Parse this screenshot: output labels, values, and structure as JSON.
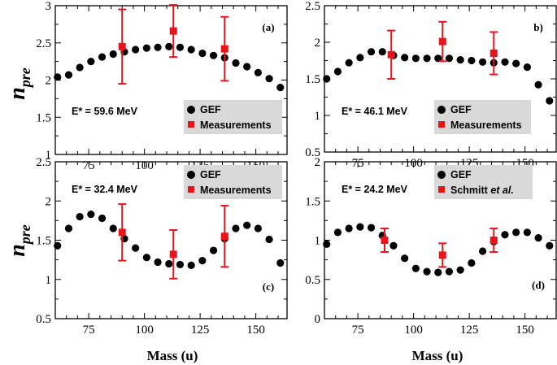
{
  "y_axis_label": "n",
  "y_axis_subscript": "pre",
  "x_axis_label": "Mass (u)",
  "chart_data": [
    {
      "type": "scatter",
      "panel_label": "(a)",
      "energy_label": "E* = 59.6 MeV",
      "legend": [
        "GEF",
        "Measurements"
      ],
      "xlim": [
        60,
        164
      ],
      "ylim": [
        1,
        3
      ],
      "xticks": [
        75,
        100,
        125,
        150
      ],
      "yticks": [
        1,
        1.5,
        2,
        2.5,
        3
      ],
      "ytick_labels": [
        "1",
        "1.5",
        "2",
        "2.5",
        "3"
      ],
      "series": [
        {
          "name": "GEF",
          "x": [
            61,
            66,
            71,
            76,
            81,
            86,
            91,
            96,
            101,
            106,
            111,
            116,
            121,
            126,
            131,
            136,
            141,
            146,
            151,
            156,
            161
          ],
          "y": [
            2.04,
            2.07,
            2.17,
            2.25,
            2.31,
            2.35,
            2.38,
            2.41,
            2.43,
            2.44,
            2.45,
            2.44,
            2.41,
            2.36,
            2.33,
            2.3,
            2.23,
            2.18,
            2.1,
            2.02,
            1.9
          ]
        },
        {
          "name": "Measurements",
          "x": [
            90,
            113,
            136
          ],
          "y": [
            2.45,
            2.66,
            2.42
          ],
          "err": [
            0.5,
            0.35,
            0.43
          ]
        }
      ]
    },
    {
      "type": "scatter",
      "panel_label": "b)",
      "energy_label": "E* = 46.1 MeV",
      "legend": [
        "GEF",
        "Measurements"
      ],
      "xlim": [
        60,
        164
      ],
      "ylim": [
        0.5,
        2.5
      ],
      "xticks": [
        75,
        100,
        125,
        150
      ],
      "yticks": [
        0.5,
        1,
        1.5,
        2,
        2.5
      ],
      "ytick_labels": [
        "0.5",
        "1",
        "1.5",
        "2",
        "2.5"
      ],
      "series": [
        {
          "name": "GEF",
          "x": [
            61,
            66,
            71,
            76,
            81,
            86,
            91,
            96,
            101,
            106,
            111,
            116,
            121,
            126,
            131,
            136,
            141,
            146,
            151,
            156,
            161
          ],
          "y": [
            1.5,
            1.6,
            1.72,
            1.79,
            1.87,
            1.87,
            1.82,
            1.79,
            1.78,
            1.78,
            1.78,
            1.78,
            1.76,
            1.75,
            1.73,
            1.72,
            1.73,
            1.71,
            1.66,
            1.42,
            1.2
          ]
        },
        {
          "name": "Measurements",
          "x": [
            90,
            113,
            136
          ],
          "y": [
            1.83,
            2.01,
            1.85
          ],
          "err": [
            0.33,
            0.27,
            0.29
          ]
        }
      ]
    },
    {
      "type": "scatter",
      "panel_label": "(c)",
      "energy_label": "E* = 32.4 MeV",
      "legend": [
        "GEF",
        "Measurements"
      ],
      "xlim": [
        60,
        164
      ],
      "ylim": [
        0.5,
        2.5
      ],
      "xticks": [
        75,
        100,
        125,
        150
      ],
      "yticks": [
        0.5,
        1,
        1.5,
        2,
        2.5
      ],
      "ytick_labels": [
        "0.5",
        "1",
        "1.5",
        "2",
        "2.5"
      ],
      "series": [
        {
          "name": "GEF",
          "x": [
            61,
            66,
            71,
            76,
            81,
            86,
            91,
            96,
            101,
            106,
            111,
            116,
            121,
            126,
            131,
            136,
            141,
            146,
            151,
            156,
            161
          ],
          "y": [
            1.43,
            1.65,
            1.8,
            1.83,
            1.78,
            1.65,
            1.52,
            1.4,
            1.28,
            1.22,
            1.2,
            1.19,
            1.18,
            1.24,
            1.37,
            1.52,
            1.65,
            1.69,
            1.65,
            1.51,
            1.21
          ]
        },
        {
          "name": "Measurements",
          "x": [
            90,
            113,
            136
          ],
          "y": [
            1.6,
            1.32,
            1.55
          ],
          "err": [
            0.36,
            0.31,
            0.39
          ]
        }
      ]
    },
    {
      "type": "scatter",
      "panel_label": "(d)",
      "energy_label": "E* = 24.2 MeV",
      "legend": [
        "GEF",
        "Schmitt",
        " et al."
      ],
      "xlim": [
        60,
        164
      ],
      "ylim": [
        0,
        2
      ],
      "xticks": [
        75,
        100,
        125,
        150
      ],
      "yticks": [
        0,
        0.5,
        1,
        1.5,
        2
      ],
      "ytick_labels": [
        "0",
        "0.5",
        "1",
        "1.5",
        "2"
      ],
      "series": [
        {
          "name": "GEF",
          "x": [
            61,
            66,
            71,
            76,
            81,
            86,
            91,
            96,
            101,
            106,
            111,
            116,
            121,
            126,
            131,
            136,
            141,
            146,
            151,
            156,
            161
          ],
          "y": [
            0.95,
            1.1,
            1.15,
            1.17,
            1.16,
            1.06,
            0.93,
            0.77,
            0.64,
            0.6,
            0.59,
            0.6,
            0.62,
            0.71,
            0.86,
            0.98,
            1.07,
            1.1,
            1.1,
            1.03,
            0.93
          ]
        },
        {
          "name": "Schmitt et al.",
          "x": [
            87,
            113,
            136
          ],
          "y": [
            1.0,
            0.81,
            1.0
          ],
          "err": [
            0.15,
            0.15,
            0.15
          ]
        }
      ]
    }
  ]
}
